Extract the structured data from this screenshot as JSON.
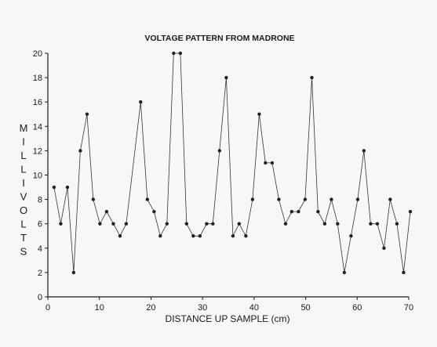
{
  "chart_data": {
    "type": "line",
    "title": "VOLTAGE PATTERN FROM MADRONE",
    "xlabel": "DISTANCE UP SAMPLE (cm)",
    "ylabel": "MILLIVOLTS",
    "xlim": [
      0,
      70
    ],
    "ylim": [
      0,
      20
    ],
    "xticks": [
      0,
      10,
      20,
      30,
      40,
      50,
      60,
      70
    ],
    "yticks": [
      0,
      2,
      4,
      6,
      8,
      10,
      12,
      14,
      16,
      18,
      20
    ],
    "grid": false,
    "marker": "dot",
    "series": [
      {
        "x": [
          1.2,
          2.5,
          3.8,
          5,
          6.3,
          7.6,
          8.8,
          10.1,
          11.4,
          12.7,
          14,
          15.2,
          18,
          19.3,
          20.6,
          21.8,
          23.1,
          24.4,
          25.7,
          26.9,
          28.2,
          29.5,
          30.8,
          32,
          33.3,
          34.6,
          35.9,
          37.1,
          38.4,
          39.7,
          41,
          42.2,
          43.5,
          44.8,
          46.1,
          47.3,
          48.6,
          49.9,
          51.2,
          52.4,
          53.7,
          55,
          56.2,
          57.5,
          58.8,
          60.1,
          61.3,
          62.6,
          63.9,
          65.2,
          66.4,
          67.7,
          69,
          70.3
        ],
        "y": [
          9,
          6,
          9,
          2,
          12,
          15,
          8,
          6,
          7,
          6,
          5,
          6,
          16,
          8,
          7,
          5,
          6,
          20,
          20,
          6,
          5,
          5,
          6,
          6,
          12,
          18,
          5,
          6,
          5,
          8,
          15,
          11,
          11,
          8,
          6,
          7,
          7,
          8,
          18,
          7,
          6,
          8,
          6,
          2,
          5,
          8,
          12,
          6,
          6,
          4,
          8,
          6,
          2,
          7
        ]
      }
    ]
  }
}
